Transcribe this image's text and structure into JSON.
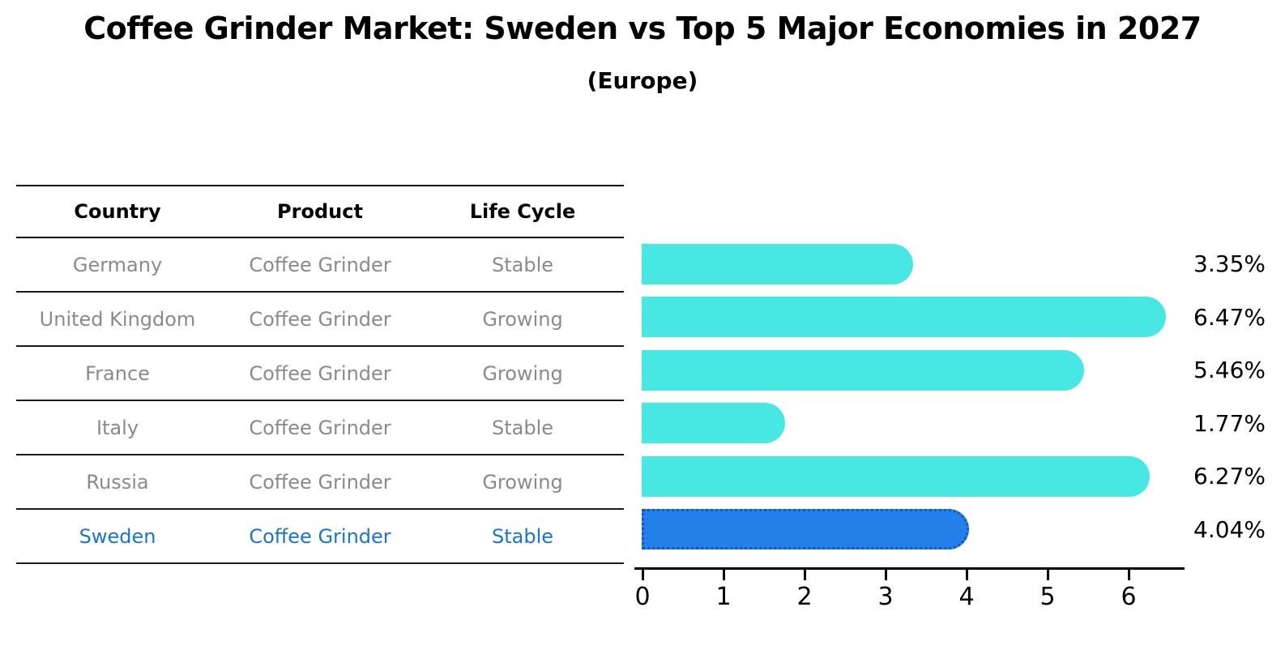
{
  "header": {
    "title": "Coffee Grinder Market: Sweden vs Top 5 Major Economies in 2027",
    "subtitle": "(Europe)"
  },
  "table": {
    "headers": [
      "Country",
      "Product",
      "Life Cycle"
    ],
    "rows": [
      {
        "country": "Germany",
        "product": "Coffee Grinder",
        "life_cycle": "Stable",
        "value_label": "3.35%",
        "highlight": false
      },
      {
        "country": "United Kingdom",
        "product": "Coffee Grinder",
        "life_cycle": "Growing",
        "value_label": "6.47%",
        "highlight": false
      },
      {
        "country": "France",
        "product": "Coffee Grinder",
        "life_cycle": "Growing",
        "value_label": "5.46%",
        "highlight": false
      },
      {
        "country": "Italy",
        "product": "Coffee Grinder",
        "life_cycle": "Stable",
        "value_label": "1.77%",
        "highlight": false
      },
      {
        "country": "Russia",
        "product": "Coffee Grinder",
        "life_cycle": "Growing",
        "value_label": "6.27%",
        "highlight": false
      },
      {
        "country": "Sweden",
        "product": "Coffee Grinder",
        "life_cycle": "Stable",
        "value_label": "4.04%",
        "highlight": true
      }
    ]
  },
  "chart_data": {
    "type": "bar",
    "orientation": "horizontal",
    "title": "Coffee Grinder Market: Sweden vs Top 5 Major Economies in 2027",
    "subtitle": "(Europe)",
    "categories": [
      "Germany",
      "United Kingdom",
      "France",
      "Italy",
      "Russia",
      "Sweden"
    ],
    "values": [
      3.35,
      6.47,
      5.46,
      1.77,
      6.27,
      4.04
    ],
    "value_labels": [
      "3.35%",
      "6.47%",
      "5.46%",
      "1.77%",
      "6.27%",
      "4.04%"
    ],
    "unit": "percent",
    "xlim": [
      0,
      6.69
    ],
    "xticks": [
      0,
      1,
      2,
      3,
      4,
      5,
      6
    ],
    "grid": false,
    "legend": "none",
    "bar_color": "#47e7e3",
    "highlight_color": "#2380eb",
    "highlight_border_color": "#1356bd",
    "highlight_index": 5,
    "highlight_category": "Sweden",
    "highlight_text_color": "#1875d2"
  }
}
